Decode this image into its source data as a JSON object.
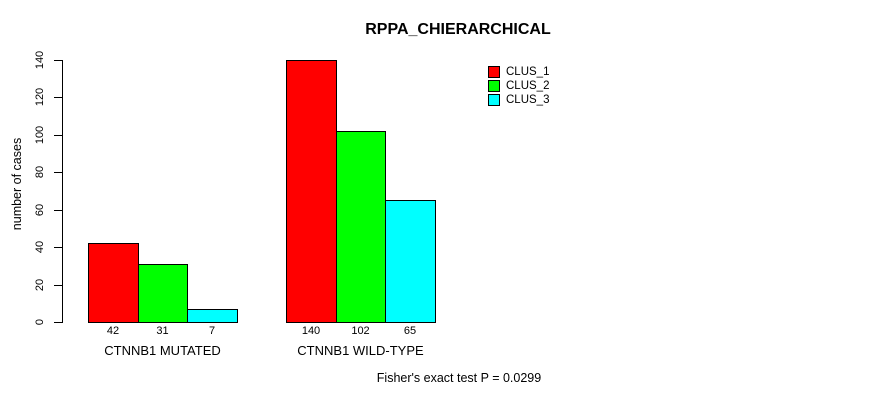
{
  "figure": {
    "background_color": "#FFFFFF",
    "text_color": "#000000",
    "bar_border_color": "#000000"
  },
  "chart_data": {
    "type": "bar",
    "title": "RPPA_CHIERARCHICAL",
    "ylabel": "number of cases",
    "xlabel": "",
    "categories": [
      "CTNNB1 MUTATED",
      "CTNNB1 WILD-TYPE"
    ],
    "series": [
      {
        "name": "CLUS_1",
        "color": "#FF0000",
        "values": [
          42,
          140
        ]
      },
      {
        "name": "CLUS_2",
        "color": "#00FF00",
        "values": [
          31,
          102
        ]
      },
      {
        "name": "CLUS_3",
        "color": "#00FFFF",
        "values": [
          7,
          65
        ]
      }
    ],
    "bar_value_labels": [
      [
        "42",
        "31",
        "7"
      ],
      [
        "140",
        "102",
        "65"
      ]
    ],
    "ylim": [
      0,
      140
    ],
    "yticks": [
      "0",
      "20",
      "40",
      "60",
      "80",
      "100",
      "120",
      "140"
    ],
    "grid": false,
    "legend_position": "top-right",
    "legend_entries": [
      "CLUS_1",
      "CLUS_2",
      "CLUS_3"
    ],
    "annotation": "Fisher's exact test P = 0.0299"
  }
}
